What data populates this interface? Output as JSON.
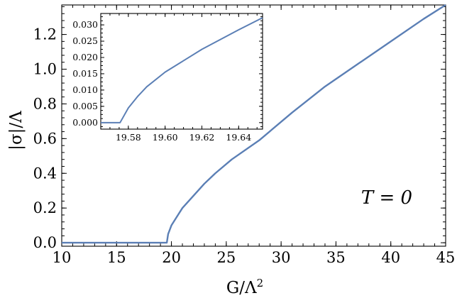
{
  "chart_data": [
    {
      "type": "line",
      "role": "main",
      "xlabel": "G/Λ²",
      "xlabel_main": "G/Λ",
      "xlabel_sup": "2",
      "ylabel": "|σ|/Λ",
      "xlim": [
        10,
        45
      ],
      "ylim": [
        -0.02,
        1.37
      ],
      "xticks": [
        10,
        15,
        20,
        25,
        30,
        35,
        40,
        45
      ],
      "xtick_labels": [
        "10",
        "15",
        "20",
        "25",
        "30",
        "35",
        "40",
        "45"
      ],
      "yticks": [
        0.0,
        0.2,
        0.4,
        0.6,
        0.8,
        1.0,
        1.2
      ],
      "ytick_labels": [
        "0.0",
        "0.2",
        "0.4",
        "0.6",
        "0.8",
        "1.0",
        "1.2"
      ],
      "annotation": "T = 0",
      "line_color": "#5b7fb5",
      "x": [
        10,
        19.5,
        19.58,
        19.7,
        20,
        20.5,
        21,
        22,
        23,
        24,
        25.5,
        28,
        31,
        34,
        37,
        40,
        43,
        45
      ],
      "y": [
        0.0,
        0.0,
        0.0,
        0.05,
        0.1,
        0.15,
        0.2,
        0.27,
        0.34,
        0.4,
        0.48,
        0.59,
        0.75,
        0.9,
        1.03,
        1.16,
        1.29,
        1.37
      ]
    },
    {
      "type": "line",
      "role": "inset",
      "xlim": [
        19.565,
        19.653
      ],
      "ylim": [
        -0.002,
        0.0335
      ],
      "xticks": [
        19.58,
        19.6,
        19.62,
        19.64
      ],
      "xtick_labels": [
        "19.58",
        "19.60",
        "19.62",
        "19.64"
      ],
      "yticks": [
        0.0,
        0.005,
        0.01,
        0.015,
        0.02,
        0.025,
        0.03
      ],
      "ytick_labels": [
        "0.000",
        "0.005",
        "0.010",
        "0.015",
        "0.020",
        "0.025",
        "0.030"
      ],
      "line_color": "#5b7fb5",
      "x": [
        19.565,
        19.5755,
        19.577,
        19.58,
        19.585,
        19.59,
        19.6,
        19.61,
        19.62,
        19.63,
        19.64,
        19.653
      ],
      "y": [
        0.0,
        0.0,
        0.0015,
        0.0045,
        0.008,
        0.011,
        0.0155,
        0.019,
        0.0225,
        0.0255,
        0.0285,
        0.0322
      ]
    }
  ]
}
